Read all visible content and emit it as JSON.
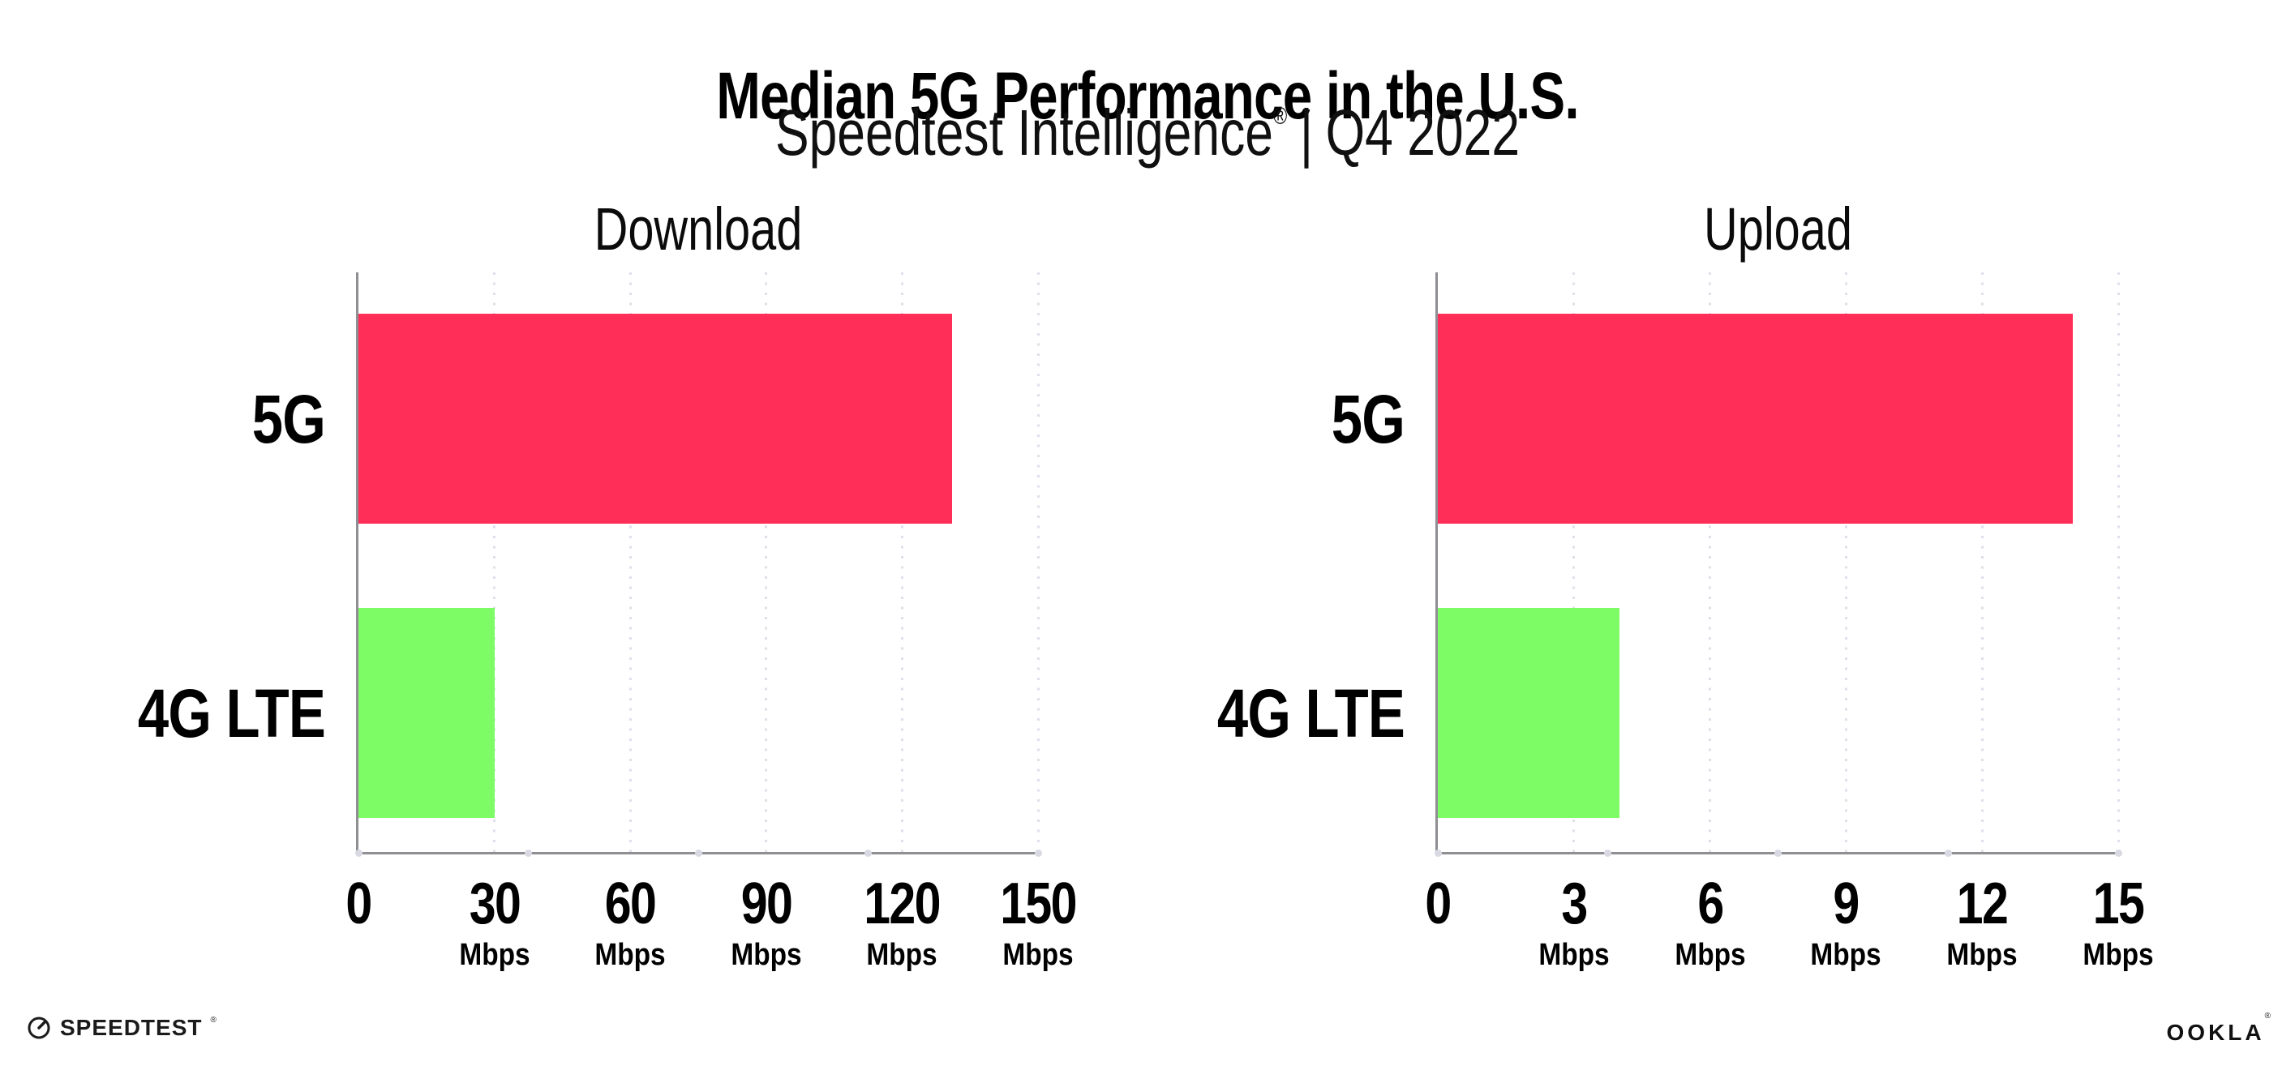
{
  "header": {
    "title": "Median 5G Performance in the U.S.",
    "subtitle": {
      "brand": "Speedtest Intelligence",
      "registered_mark": "®",
      "separator": "|",
      "period": "Q4 2022"
    }
  },
  "chart_data": [
    {
      "type": "bar",
      "orientation": "horizontal",
      "title": "Download",
      "categories": [
        "5G",
        "4G LTE"
      ],
      "values": [
        131,
        30
      ],
      "unit": "Mbps",
      "xlim": [
        0,
        150
      ],
      "xticks": [
        0,
        30,
        60,
        90,
        120,
        150
      ],
      "bar_colors": [
        "#ff2e58",
        "#7efc66"
      ],
      "grid": "dotted-vertical",
      "legend": "none"
    },
    {
      "type": "bar",
      "orientation": "horizontal",
      "title": "Upload",
      "categories": [
        "5G",
        "4G LTE"
      ],
      "values": [
        14,
        4
      ],
      "unit": "Mbps",
      "xlim": [
        0,
        15
      ],
      "xticks": [
        0,
        3,
        6,
        9,
        12,
        15
      ],
      "bar_colors": [
        "#ff2e58",
        "#7efc66"
      ],
      "grid": "dotted-vertical",
      "legend": "none"
    }
  ],
  "footer": {
    "speedtest_logo_text": "SPEEDTEST",
    "speedtest_trademark": "®",
    "ookla_logo_text": "OOKLA",
    "ookla_trademark": "®"
  },
  "colors": {
    "bar_5g": "#ff2e58",
    "bar_4g_lte": "#7efc66",
    "axis_line": "#8e8e93",
    "gridline_dots": "#dfdfea",
    "axis_end_dots": "#d9d9e4",
    "text": "#000000",
    "background": "#ffffff"
  }
}
